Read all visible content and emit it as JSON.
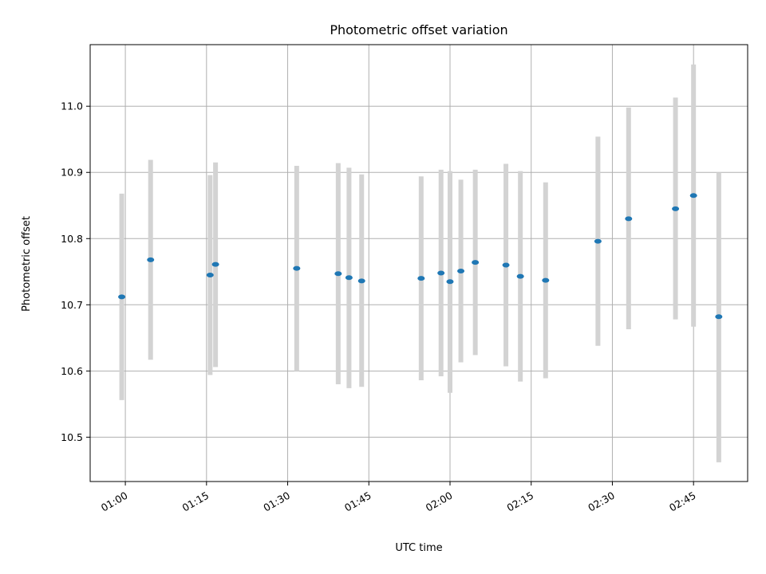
{
  "chart_data": {
    "type": "scatter",
    "title": "Photometric offset variation",
    "xlabel": "UTC time",
    "ylabel": "Photometric offset",
    "xlim": [
      "00:53:30",
      "02:55:00"
    ],
    "ylim": [
      10.433,
      10.93
    ],
    "x_ticks": [
      "01:00",
      "01:15",
      "01:30",
      "01:45",
      "02:00",
      "02:15",
      "02:30",
      "02:45"
    ],
    "y_ticks": [
      "10.5",
      "10.6",
      "10.7",
      "10.8",
      "10.9",
      "11.0"
    ],
    "y_tick_values": [
      10.5,
      10.6,
      10.7,
      10.8,
      10.9,
      11.0
    ],
    "grid": true,
    "marker_color": "#1f77b4",
    "errorbar_color": "#d3d3d3",
    "points": [
      {
        "t": "00:59:20",
        "y": 10.712,
        "lo": 10.556,
        "hi": 10.868
      },
      {
        "t": "01:04:40",
        "y": 10.768,
        "lo": 10.617,
        "hi": 10.919
      },
      {
        "t": "01:15:40",
        "y": 10.745,
        "lo": 10.594,
        "hi": 10.896
      },
      {
        "t": "01:16:40",
        "y": 10.761,
        "lo": 10.606,
        "hi": 10.915
      },
      {
        "t": "01:31:40",
        "y": 10.755,
        "lo": 10.6,
        "hi": 10.91
      },
      {
        "t": "01:39:20",
        "y": 10.747,
        "lo": 10.58,
        "hi": 10.914
      },
      {
        "t": "01:41:20",
        "y": 10.741,
        "lo": 10.574,
        "hi": 10.907
      },
      {
        "t": "01:43:40",
        "y": 10.736,
        "lo": 10.576,
        "hi": 10.897
      },
      {
        "t": "01:54:40",
        "y": 10.74,
        "lo": 10.586,
        "hi": 10.894
      },
      {
        "t": "01:58:20",
        "y": 10.748,
        "lo": 10.592,
        "hi": 10.904
      },
      {
        "t": "02:00:00",
        "y": 10.735,
        "lo": 10.567,
        "hi": 10.902
      },
      {
        "t": "02:02:00",
        "y": 10.751,
        "lo": 10.613,
        "hi": 10.889
      },
      {
        "t": "02:04:40",
        "y": 10.764,
        "lo": 10.624,
        "hi": 10.904
      },
      {
        "t": "02:10:20",
        "y": 10.76,
        "lo": 10.607,
        "hi": 10.913
      },
      {
        "t": "02:13:00",
        "y": 10.743,
        "lo": 10.584,
        "hi": 10.902
      },
      {
        "t": "02:17:40",
        "y": 10.737,
        "lo": 10.589,
        "hi": 10.885
      },
      {
        "t": "02:27:20",
        "y": 10.796,
        "lo": 10.638,
        "hi": 10.954
      },
      {
        "t": "02:33:00",
        "y": 10.83,
        "lo": 10.663,
        "hi": 10.998
      },
      {
        "t": "02:41:40",
        "y": 10.845,
        "lo": 10.678,
        "hi": 11.013
      },
      {
        "t": "02:45:00",
        "y": 10.865,
        "lo": 10.667,
        "hi": 11.063
      },
      {
        "t": "02:49:40",
        "y": 10.682,
        "lo": 10.462,
        "hi": 10.9
      }
    ]
  }
}
